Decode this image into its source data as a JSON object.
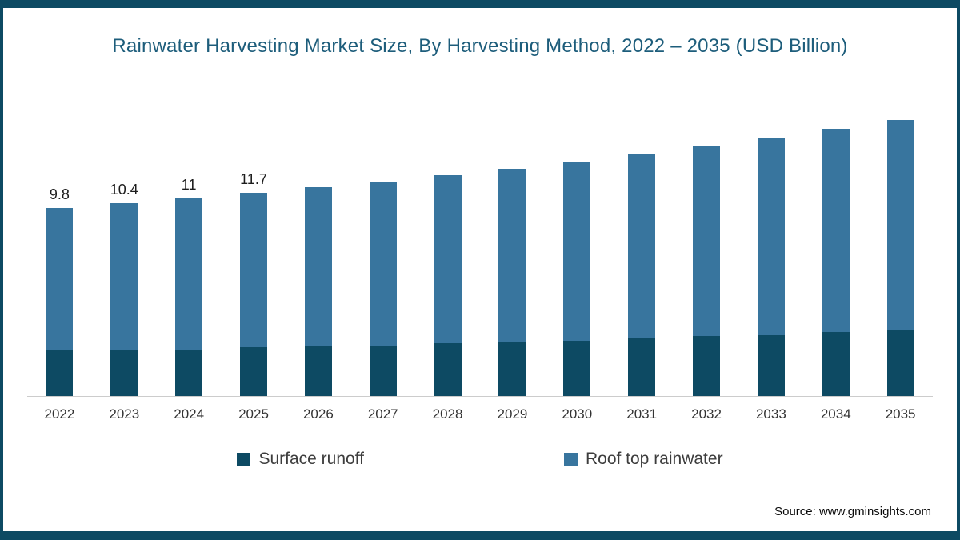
{
  "chart_data": {
    "type": "bar",
    "stacked": true,
    "title": "Rainwater Harvesting Market Size, By Harvesting Method, 2022 – 2035 (USD Billion)",
    "xlabel": "",
    "ylabel": "USD Billion",
    "ylim": [
      0,
      22
    ],
    "grid": false,
    "legend_position": "bottom",
    "categories": [
      "2022",
      "2023",
      "2024",
      "2025",
      "2026",
      "2027",
      "2028",
      "2029",
      "2030",
      "2031",
      "2032",
      "2033",
      "2034",
      "2035"
    ],
    "series": [
      {
        "name": "Surface runoff",
        "color": "#0d4a63",
        "values": [
          2.4,
          2.5,
          2.6,
          2.8,
          3.0,
          3.1,
          3.3,
          3.5,
          3.7,
          4.0,
          4.2,
          4.4,
          4.7,
          5.0
        ]
      },
      {
        "name": "Roof top rainwater",
        "color": "#38759e",
        "values": [
          7.4,
          7.9,
          8.4,
          8.9,
          9.4,
          10.0,
          10.6,
          11.2,
          11.9,
          12.5,
          13.3,
          14.2,
          15.0,
          15.8
        ]
      }
    ],
    "totals": [
      9.8,
      10.4,
      11.0,
      11.7,
      12.4,
      13.1,
      13.9,
      14.7,
      15.6,
      16.5,
      17.5,
      18.6,
      19.7,
      20.8
    ],
    "total_labels": [
      "9.8",
      "10.4",
      "11",
      "11.7",
      "",
      "",
      "",
      "",
      "",
      "",
      "",
      "",
      "",
      ""
    ]
  },
  "source": {
    "text": "Source: www.gminsights.com"
  },
  "frame": {
    "border_color": "#0d4a63",
    "axis_line_color": "#cccccc",
    "title_color": "#1d5d7b"
  }
}
